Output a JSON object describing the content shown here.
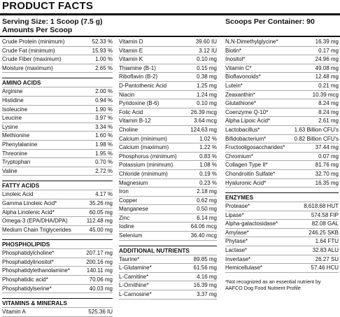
{
  "header": {
    "title": "PRODUCT FACTS",
    "serving_size": "Serving Size: 1 Scoop (7.5 g)",
    "scoops": "Scoops Per Container: 90",
    "amounts": "Amounts Per Scoop"
  },
  "columns": [
    {
      "sections": [
        {
          "rows": [
            [
              "Crude Protein (minimum)",
              "52.33 %"
            ],
            [
              "Crude Fat (minimum)",
              "15.93 %"
            ],
            [
              "Crude Fiber (maximum)",
              "1.00 %"
            ],
            [
              "Moisture (maximum)",
              "2.65 %"
            ]
          ]
        },
        {
          "heading": "AMINO ACIDS",
          "rows": [
            [
              "Arginine",
              "2.00 %"
            ],
            [
              "Histidine",
              "0.94 %"
            ],
            [
              "Isoleucine",
              "1.90 %"
            ],
            [
              "Leucine",
              "3.97 %"
            ],
            [
              "Lysine",
              "3.34 %"
            ],
            [
              "Methionine",
              "1.60 %"
            ],
            [
              "Phenylalanine",
              "1.98 %"
            ],
            [
              "Threonine",
              "1.95 %"
            ],
            [
              "Tryptophan",
              "0.70 %"
            ],
            [
              "Valine",
              "2.72 %"
            ]
          ]
        },
        {
          "heading": "FATTY ACIDS",
          "rows": [
            [
              "Linoleic Acid",
              "4.17 %"
            ],
            [
              "Gamma Linoleic Acid*",
              "35.26 mg"
            ],
            [
              "Alpha Linolenic Acid*",
              "60.05 mg"
            ],
            [
              "Omega-3 (EPA/DHA/DPA)",
              "112.48 mg"
            ],
            [
              "Medium Chain Triglycerides",
              "45.00 mg"
            ]
          ]
        },
        {
          "heading": "PHOSPHOLIPIDS",
          "rows": [
            [
              "Phosphatidylcholine*",
              "207.17 mg"
            ],
            [
              "Phosphatidylinositol*",
              "200.16 mg"
            ],
            [
              "Phosphatidylethanolamine*",
              "140.11 mg"
            ],
            [
              "Phosphatidic acid*",
              "70.06 mg"
            ],
            [
              "Phosphatidylserine*",
              "40.03 mg"
            ]
          ]
        },
        {
          "heading": "VITAMINS & MINERALS",
          "rows": [
            [
              "Vitamin A",
              "525.36 IU"
            ]
          ]
        }
      ]
    },
    {
      "sections": [
        {
          "rows": [
            [
              "Vitamin D",
              "39.60 IU"
            ],
            [
              "Vitamin E",
              "3.12 IU"
            ],
            [
              "Vitamin K",
              "0.10 mg"
            ],
            [
              "Thiamine (B-1)",
              "0.15 mg"
            ],
            [
              "Riboflavin (B-2)",
              "0.38 mg"
            ],
            [
              "D-Pantothenic Acid",
              "1.25 mg"
            ],
            [
              "Niacin",
              "1.24 mg"
            ],
            [
              "Pyridoxine (B-6)",
              "0.10 mg"
            ],
            [
              "Folic Acid",
              "26.39 mcg"
            ],
            [
              "Vitamin B-12",
              "3.64 mcg"
            ],
            [
              "Choline",
              "124.63 mg"
            ],
            [
              "Calcium (minimum)",
              "1.02 %"
            ],
            [
              "Calcium (maximum)",
              "1.22 %"
            ],
            [
              "Phosphorus (minimum)",
              "0.83 %"
            ],
            [
              "Potassium (minimum)",
              "1.08 %"
            ],
            [
              "Chloride (minimum)",
              "0.19 %"
            ],
            [
              "Magnesium",
              "0.23 %"
            ],
            [
              "Iron",
              "2.18 mg"
            ],
            [
              "Copper",
              "0.62 mg"
            ],
            [
              "Manganese",
              "0.50 mg"
            ],
            [
              "Zinc",
              "6.14 mg"
            ],
            [
              "Iodine",
              "64.06 mcg"
            ],
            [
              "Selenium",
              "36.40 mcg"
            ]
          ]
        },
        {
          "heading": "ADDITIONAL NUTRIENTS",
          "rows": [
            [
              "Taurine*",
              "89.85 mg"
            ],
            [
              "L-Glutamine*",
              "61.56 mg"
            ],
            [
              "L-Carnitine*",
              "4.16 mg"
            ],
            [
              "L-Ornithine*",
              "16.39 mg"
            ],
            [
              "L-Carnosine*",
              "3.37 mg"
            ]
          ]
        }
      ]
    },
    {
      "sections": [
        {
          "rows": [
            [
              "N,N-Dimethylglycine*",
              "16.39 mg"
            ],
            [
              "Biotin*",
              "0.17 mg"
            ],
            [
              "Inositol*",
              "24.96 mg"
            ],
            [
              "Vitamin C*",
              "49.08 mg"
            ],
            [
              "Bioflavonoids*",
              "12.48 mg"
            ],
            [
              "Lutein*",
              "0.21 mg"
            ],
            [
              "Zeaxanthin*",
              "10.39 mcg"
            ],
            [
              "Glutathione*",
              "8.24 mg"
            ],
            [
              "Coenzyme Q-10*",
              "8.24 mg"
            ],
            [
              "Alpha Lipoic Acid*",
              "2.61 mg"
            ],
            [
              "Lactobacillus*",
              "1.63 Billion CFU's"
            ],
            [
              "Bifidobacterium*",
              "0.82 Billion CFU's"
            ],
            [
              "Fructooligosaccharides*",
              "37.44 mg"
            ],
            [
              "Chromium*",
              "0.07 mg"
            ],
            [
              "Collagen Type II*",
              "81.76 mg"
            ],
            [
              "Chondroitin Sulfate*",
              "32.70 mg"
            ],
            [
              "Hyaluronic Acid*",
              "16.35 mg"
            ]
          ]
        },
        {
          "heading": "ENZYMES",
          "rows": [
            [
              "Protease*",
              "8,618.68 HUT"
            ],
            [
              "Lipase*",
              "574.58 FIP"
            ],
            [
              "Alpha-galactosidase*",
              "82.08 GAL"
            ],
            [
              "Amylase*",
              "246.25 SKB"
            ],
            [
              "Phytase*",
              "1.64 FTU"
            ],
            [
              "Lactase*",
              "32.83 ALU"
            ],
            [
              "Invertase*",
              "26.27 SU"
            ],
            [
              "Hemicellulase*",
              "57.46 HCU"
            ]
          ]
        }
      ],
      "note": "*Not recognized as an essential nutrient by AAFCO Dog Food Nutrient Profile"
    }
  ]
}
